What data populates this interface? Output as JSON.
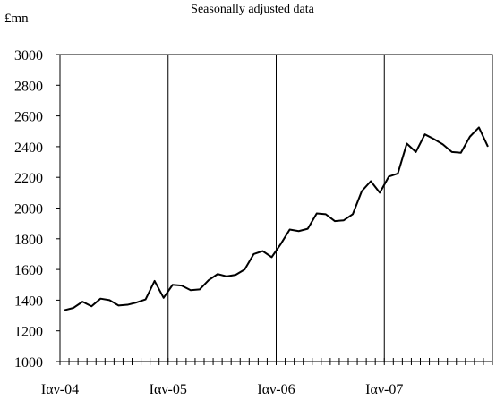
{
  "chart_data": {
    "type": "line",
    "title": "",
    "subtitle": "Seasonally adjusted data",
    "ylabel": "£mn",
    "xlabel": "",
    "ylim": [
      1000,
      3000
    ],
    "yticks": [
      1000,
      1200,
      1400,
      1600,
      1800,
      2000,
      2200,
      2400,
      2600,
      2800,
      3000
    ],
    "xtick_labels": [
      "Ιαν-04",
      "Ιαν-05",
      "Ιαν-06",
      "Ιαν-07"
    ],
    "x_start": "2004-01",
    "x_frequency": "monthly",
    "grid": "vertical at January of each year",
    "legend": "none",
    "line_color": "#000000",
    "series": [
      {
        "values": [
          1335,
          1350,
          1390,
          1360,
          1410,
          1400,
          1365,
          1370,
          1385,
          1405,
          1525,
          1415,
          1500,
          1495,
          1465,
          1470,
          1530,
          1570,
          1555,
          1565,
          1600,
          1700,
          1720,
          1680,
          1765,
          1860,
          1850,
          1865,
          1965,
          1960,
          1915,
          1920,
          1960,
          2110,
          2175,
          2100,
          2205,
          2225,
          2420,
          2365,
          2480,
          2450,
          2415,
          2365,
          2360,
          2465,
          2525,
          2400
        ]
      }
    ]
  }
}
